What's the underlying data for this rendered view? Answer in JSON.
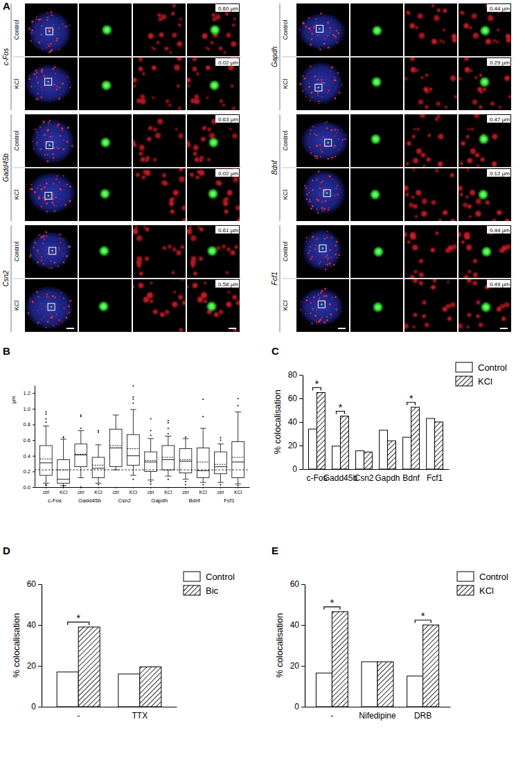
{
  "panel_a": {
    "title": "A",
    "columns": [
      [
        {
          "gene": "c-Fos",
          "rows": [
            {
              "condition": "Control",
              "distance": "0.60 µm"
            },
            {
              "condition": "KCl",
              "distance": "0.02 µm"
            }
          ]
        },
        {
          "gene": "Gadd45b",
          "rows": [
            {
              "condition": "Control",
              "distance": "0.63 µm"
            },
            {
              "condition": "KCl",
              "distance": "0.02 µm"
            }
          ]
        },
        {
          "gene": "Csn2",
          "rows": [
            {
              "condition": "Control",
              "distance": "0.61 µm"
            },
            {
              "condition": "KCl",
              "distance": "0.58 µm"
            }
          ]
        }
      ],
      [
        {
          "gene": "Gapdh",
          "rows": [
            {
              "condition": "Control",
              "distance": "0.44 µm"
            },
            {
              "condition": "KCl",
              "distance": "0.29 µm"
            }
          ]
        },
        {
          "gene": "Bdnf",
          "rows": [
            {
              "condition": "Control",
              "distance": "0.47 µm"
            },
            {
              "condition": "KCl",
              "distance": "0.12 µm"
            }
          ]
        },
        {
          "gene": "Fcf1",
          "rows": [
            {
              "condition": "Control",
              "distance": "0.44 µm"
            },
            {
              "condition": "KCl",
              "distance": "0.49 µm"
            }
          ]
        }
      ]
    ]
  },
  "chart_data": [
    {
      "type": "box",
      "title": "B",
      "y_label": "µm",
      "categories": [
        "ctrl",
        "KCl",
        "ctrl",
        "KCl",
        "ctrl",
        "KCl",
        "ctrl",
        "KCl",
        "ctrl",
        "KCl",
        "ctrl",
        "KCl"
      ],
      "groups": [
        "c-Fos",
        "Gadd45b",
        "Csn2",
        "Gapdh",
        "Bdnf",
        "Fcf1"
      ],
      "whisker_low": [
        0.05,
        0.02,
        0.12,
        0.05,
        0.22,
        0.15,
        0.09,
        0.14,
        0.1,
        0.06,
        0.06,
        0.04
      ],
      "q1": [
        0.15,
        0.05,
        0.26,
        0.12,
        0.26,
        0.28,
        0.2,
        0.22,
        0.18,
        0.12,
        0.17,
        0.12
      ],
      "median": [
        0.31,
        0.1,
        0.41,
        0.24,
        0.5,
        0.4,
        0.32,
        0.35,
        0.33,
        0.21,
        0.26,
        0.32
      ],
      "mean": [
        0.36,
        0.22,
        0.42,
        0.28,
        0.53,
        0.49,
        0.34,
        0.38,
        0.35,
        0.32,
        0.29,
        0.38
      ],
      "q3": [
        0.53,
        0.35,
        0.55,
        0.38,
        0.74,
        0.67,
        0.45,
        0.53,
        0.49,
        0.5,
        0.45,
        0.58
      ],
      "whisker_high": [
        0.78,
        0.61,
        0.72,
        0.54,
        0.92,
        0.99,
        0.62,
        0.65,
        0.62,
        0.75,
        0.55,
        0.96
      ],
      "outliers": [
        [
          0.02,
          0.03,
          0.83,
          0.87,
          0.93,
          0.96
        ],
        [
          0.01,
          0.63,
          0.64
        ],
        [
          0.0,
          0.75,
          0.9,
          0.92
        ],
        [
          0.03,
          0.7,
          0.72
        ],
        [],
        [
          0.1,
          1.07,
          1.12,
          1.15,
          1.29
        ],
        [
          0.04,
          0.07,
          0.66,
          0.72,
          0.87
        ],
        [
          0.1,
          0.68,
          0.75,
          0.82,
          0.85
        ],
        [
          0.03,
          0.07,
          0.64
        ],
        [
          0.03,
          0.9,
          1.12
        ],
        [
          0.03,
          0.6,
          0.63
        ],
        [
          0.02,
          1.04,
          1.13
        ]
      ],
      "reference_line": 0.22,
      "ylim": [
        0,
        1.3
      ],
      "yticks": [
        {
          "value": 0,
          "label": "0.0"
        },
        0.2,
        0.4,
        0.6,
        0.8,
        {
          "value": 1,
          "label": "1.0"
        },
        1.2
      ]
    },
    {
      "type": "bar",
      "title": "C",
      "y_label": "% colocalisation",
      "categories": [
        "c-Fos",
        "Gadd45b",
        "Csn2",
        "Gapdh",
        "Bdnf",
        "Fcf1"
      ],
      "series": [
        {
          "name": "Control",
          "color": "#ffffff",
          "values": [
            34,
            19.5,
            15.5,
            33,
            27,
            43
          ]
        },
        {
          "name": "KCl",
          "color": "#000000",
          "values": [
            65,
            45,
            14.5,
            24,
            52.5,
            40
          ]
        }
      ],
      "ylim": [
        0,
        80
      ],
      "yticks": [
        0,
        20,
        40,
        60,
        80
      ],
      "legend": "top-right",
      "annotations": [
        {
          "category": "c-Fos",
          "text": "*"
        },
        {
          "category": "Gadd45b",
          "text": "*"
        },
        {
          "category": "Bdnf",
          "text": "*"
        }
      ]
    },
    {
      "type": "bar",
      "title": "D",
      "y_label": "% colocalisation",
      "categories": [
        "-",
        "TTX"
      ],
      "series": [
        {
          "name": "Control",
          "color": "#ffffff",
          "values": [
            17,
            16
          ]
        },
        {
          "name": "Bic",
          "color": "#000000",
          "values": [
            39,
            19.5
          ]
        }
      ],
      "ylim": [
        0,
        60
      ],
      "yticks": [
        0,
        20,
        40,
        60
      ],
      "legend": "top-right",
      "annotations": [
        {
          "category": "-",
          "text": "*"
        }
      ]
    },
    {
      "type": "bar",
      "title": "E",
      "y_label": "% colocalisation",
      "categories": [
        "-",
        "Nifedipine",
        "DRB"
      ],
      "series": [
        {
          "name": "Control",
          "color": "#ffffff",
          "values": [
            16.5,
            22,
            15
          ]
        },
        {
          "name": "KCl",
          "color": "#000000",
          "values": [
            46.5,
            22,
            40
          ]
        }
      ],
      "ylim": [
        0,
        60
      ],
      "yticks": [
        0,
        20,
        40,
        60
      ],
      "legend": "top-right",
      "annotations": [
        {
          "category": "-",
          "text": "*"
        },
        {
          "category": "DRB",
          "text": "*"
        }
      ]
    }
  ]
}
